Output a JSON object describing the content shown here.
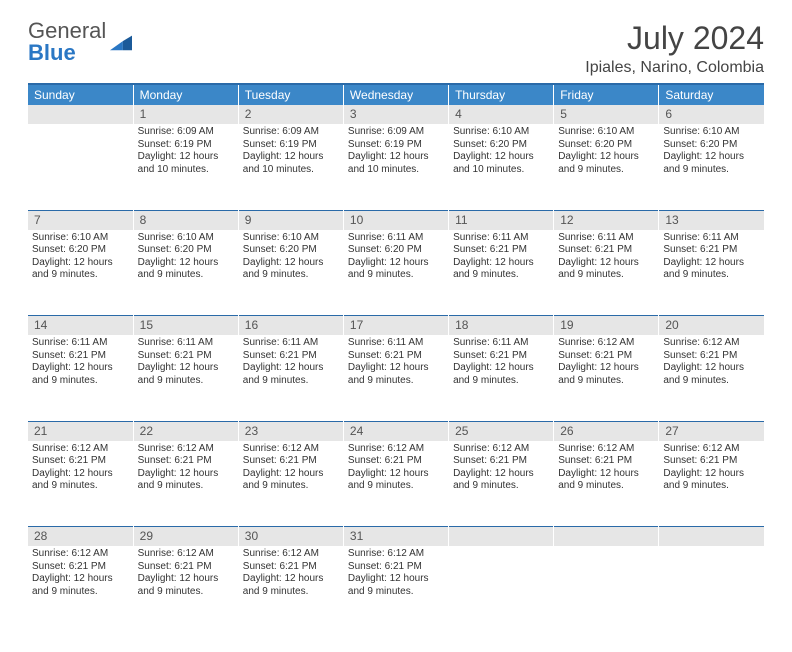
{
  "logo": {
    "word1": "General",
    "word2": "Blue"
  },
  "header": {
    "title": "July 2024",
    "subtitle": "Ipiales, Narino, Colombia"
  },
  "colors": {
    "header_bg": "#3b87c8",
    "header_border": "#2a6aa8",
    "daynum_bg": "#e6e6e6",
    "text": "#333333",
    "logo_accent": "#2a77c4"
  },
  "weekdays": [
    "Sunday",
    "Monday",
    "Tuesday",
    "Wednesday",
    "Thursday",
    "Friday",
    "Saturday"
  ],
  "weeks": [
    [
      {
        "n": "",
        "lines": []
      },
      {
        "n": "1",
        "lines": [
          "Sunrise: 6:09 AM",
          "Sunset: 6:19 PM",
          "Daylight: 12 hours",
          "and 10 minutes."
        ]
      },
      {
        "n": "2",
        "lines": [
          "Sunrise: 6:09 AM",
          "Sunset: 6:19 PM",
          "Daylight: 12 hours",
          "and 10 minutes."
        ]
      },
      {
        "n": "3",
        "lines": [
          "Sunrise: 6:09 AM",
          "Sunset: 6:19 PM",
          "Daylight: 12 hours",
          "and 10 minutes."
        ]
      },
      {
        "n": "4",
        "lines": [
          "Sunrise: 6:10 AM",
          "Sunset: 6:20 PM",
          "Daylight: 12 hours",
          "and 10 minutes."
        ]
      },
      {
        "n": "5",
        "lines": [
          "Sunrise: 6:10 AM",
          "Sunset: 6:20 PM",
          "Daylight: 12 hours",
          "and 9 minutes."
        ]
      },
      {
        "n": "6",
        "lines": [
          "Sunrise: 6:10 AM",
          "Sunset: 6:20 PM",
          "Daylight: 12 hours",
          "and 9 minutes."
        ]
      }
    ],
    [
      {
        "n": "7",
        "lines": [
          "Sunrise: 6:10 AM",
          "Sunset: 6:20 PM",
          "Daylight: 12 hours",
          "and 9 minutes."
        ]
      },
      {
        "n": "8",
        "lines": [
          "Sunrise: 6:10 AM",
          "Sunset: 6:20 PM",
          "Daylight: 12 hours",
          "and 9 minutes."
        ]
      },
      {
        "n": "9",
        "lines": [
          "Sunrise: 6:10 AM",
          "Sunset: 6:20 PM",
          "Daylight: 12 hours",
          "and 9 minutes."
        ]
      },
      {
        "n": "10",
        "lines": [
          "Sunrise: 6:11 AM",
          "Sunset: 6:20 PM",
          "Daylight: 12 hours",
          "and 9 minutes."
        ]
      },
      {
        "n": "11",
        "lines": [
          "Sunrise: 6:11 AM",
          "Sunset: 6:21 PM",
          "Daylight: 12 hours",
          "and 9 minutes."
        ]
      },
      {
        "n": "12",
        "lines": [
          "Sunrise: 6:11 AM",
          "Sunset: 6:21 PM",
          "Daylight: 12 hours",
          "and 9 minutes."
        ]
      },
      {
        "n": "13",
        "lines": [
          "Sunrise: 6:11 AM",
          "Sunset: 6:21 PM",
          "Daylight: 12 hours",
          "and 9 minutes."
        ]
      }
    ],
    [
      {
        "n": "14",
        "lines": [
          "Sunrise: 6:11 AM",
          "Sunset: 6:21 PM",
          "Daylight: 12 hours",
          "and 9 minutes."
        ]
      },
      {
        "n": "15",
        "lines": [
          "Sunrise: 6:11 AM",
          "Sunset: 6:21 PM",
          "Daylight: 12 hours",
          "and 9 minutes."
        ]
      },
      {
        "n": "16",
        "lines": [
          "Sunrise: 6:11 AM",
          "Sunset: 6:21 PM",
          "Daylight: 12 hours",
          "and 9 minutes."
        ]
      },
      {
        "n": "17",
        "lines": [
          "Sunrise: 6:11 AM",
          "Sunset: 6:21 PM",
          "Daylight: 12 hours",
          "and 9 minutes."
        ]
      },
      {
        "n": "18",
        "lines": [
          "Sunrise: 6:11 AM",
          "Sunset: 6:21 PM",
          "Daylight: 12 hours",
          "and 9 minutes."
        ]
      },
      {
        "n": "19",
        "lines": [
          "Sunrise: 6:12 AM",
          "Sunset: 6:21 PM",
          "Daylight: 12 hours",
          "and 9 minutes."
        ]
      },
      {
        "n": "20",
        "lines": [
          "Sunrise: 6:12 AM",
          "Sunset: 6:21 PM",
          "Daylight: 12 hours",
          "and 9 minutes."
        ]
      }
    ],
    [
      {
        "n": "21",
        "lines": [
          "Sunrise: 6:12 AM",
          "Sunset: 6:21 PM",
          "Daylight: 12 hours",
          "and 9 minutes."
        ]
      },
      {
        "n": "22",
        "lines": [
          "Sunrise: 6:12 AM",
          "Sunset: 6:21 PM",
          "Daylight: 12 hours",
          "and 9 minutes."
        ]
      },
      {
        "n": "23",
        "lines": [
          "Sunrise: 6:12 AM",
          "Sunset: 6:21 PM",
          "Daylight: 12 hours",
          "and 9 minutes."
        ]
      },
      {
        "n": "24",
        "lines": [
          "Sunrise: 6:12 AM",
          "Sunset: 6:21 PM",
          "Daylight: 12 hours",
          "and 9 minutes."
        ]
      },
      {
        "n": "25",
        "lines": [
          "Sunrise: 6:12 AM",
          "Sunset: 6:21 PM",
          "Daylight: 12 hours",
          "and 9 minutes."
        ]
      },
      {
        "n": "26",
        "lines": [
          "Sunrise: 6:12 AM",
          "Sunset: 6:21 PM",
          "Daylight: 12 hours",
          "and 9 minutes."
        ]
      },
      {
        "n": "27",
        "lines": [
          "Sunrise: 6:12 AM",
          "Sunset: 6:21 PM",
          "Daylight: 12 hours",
          "and 9 minutes."
        ]
      }
    ],
    [
      {
        "n": "28",
        "lines": [
          "Sunrise: 6:12 AM",
          "Sunset: 6:21 PM",
          "Daylight: 12 hours",
          "and 9 minutes."
        ]
      },
      {
        "n": "29",
        "lines": [
          "Sunrise: 6:12 AM",
          "Sunset: 6:21 PM",
          "Daylight: 12 hours",
          "and 9 minutes."
        ]
      },
      {
        "n": "30",
        "lines": [
          "Sunrise: 6:12 AM",
          "Sunset: 6:21 PM",
          "Daylight: 12 hours",
          "and 9 minutes."
        ]
      },
      {
        "n": "31",
        "lines": [
          "Sunrise: 6:12 AM",
          "Sunset: 6:21 PM",
          "Daylight: 12 hours",
          "and 9 minutes."
        ]
      },
      {
        "n": "",
        "lines": []
      },
      {
        "n": "",
        "lines": []
      },
      {
        "n": "",
        "lines": []
      }
    ]
  ]
}
